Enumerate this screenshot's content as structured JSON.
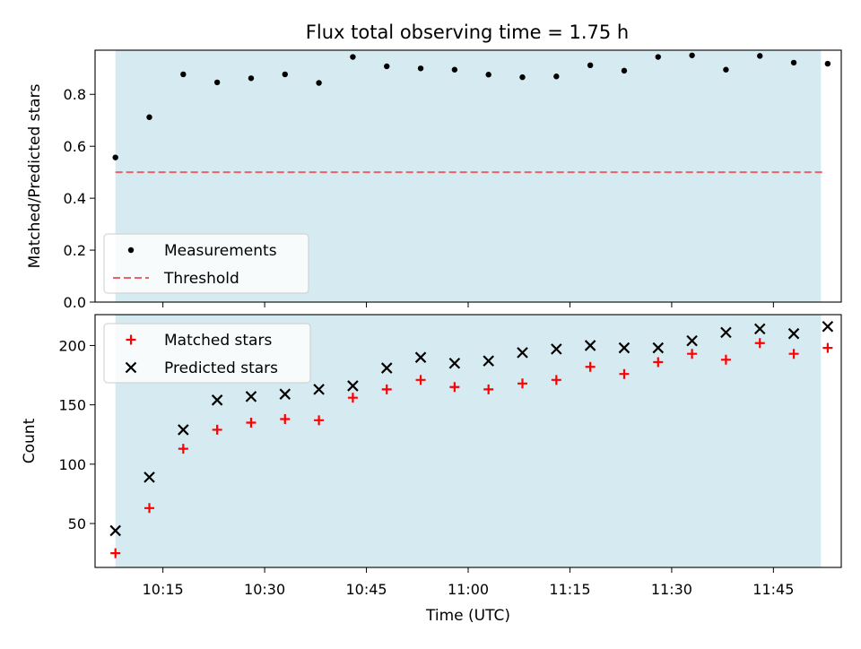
{
  "figure": {
    "title": "Flux total observing time = 1.75 h"
  },
  "chart_data": [
    {
      "type": "scatter",
      "panel": "top",
      "title": "Flux total observing time = 1.75 h",
      "xlabel": "",
      "ylabel": "Matched/Predicted stars",
      "xlim": [
        "10:05",
        "11:55"
      ],
      "ylim": [
        0,
        0.97
      ],
      "yticks": [
        0.0,
        0.2,
        0.4,
        0.6,
        0.8
      ],
      "ytick_labels": [
        "0.0",
        "0.2",
        "0.4",
        "0.6",
        "0.8"
      ],
      "grid": false,
      "shaded_span": {
        "from": "10:08",
        "to": "11:52",
        "color": "#d5ebf1"
      },
      "legend": {
        "placement": "lower-left"
      },
      "x": [
        "10:08",
        "10:13",
        "10:18",
        "10:23",
        "10:28",
        "10:33",
        "10:38",
        "10:43",
        "10:48",
        "10:53",
        "10:58",
        "11:03",
        "11:08",
        "11:13",
        "11:18",
        "11:23",
        "11:28",
        "11:33",
        "11:38",
        "11:43",
        "11:48",
        "11:53"
      ],
      "series": [
        {
          "name": "Measurements",
          "marker": "dot",
          "color": "#000000",
          "values": [
            0.557,
            0.712,
            0.877,
            0.846,
            0.862,
            0.877,
            0.844,
            0.944,
            0.908,
            0.9,
            0.895,
            0.876,
            0.866,
            0.869,
            0.912,
            0.891,
            0.944,
            0.95,
            0.895,
            0.948,
            0.922,
            0.918
          ]
        },
        {
          "name": "Threshold",
          "style": "dashed-line",
          "color": "#ef5f67",
          "values": [
            0.5
          ]
        }
      ]
    },
    {
      "type": "scatter",
      "panel": "bottom",
      "xlabel": "Time (UTC)",
      "ylabel": "Count",
      "xlim": [
        "10:05",
        "11:55"
      ],
      "ylim": [
        13,
        226
      ],
      "xticks": [
        "10:15",
        "10:30",
        "10:45",
        "11:00",
        "11:15",
        "11:30",
        "11:45"
      ],
      "yticks": [
        50,
        100,
        150,
        200
      ],
      "ytick_labels": [
        "50",
        "100",
        "150",
        "200"
      ],
      "grid": false,
      "shaded_span": {
        "from": "10:08",
        "to": "11:52",
        "color": "#d5ebf1"
      },
      "legend": {
        "placement": "top-left"
      },
      "x": [
        "10:08",
        "10:13",
        "10:18",
        "10:23",
        "10:28",
        "10:33",
        "10:38",
        "10:43",
        "10:48",
        "10:53",
        "10:58",
        "11:03",
        "11:08",
        "11:13",
        "11:18",
        "11:23",
        "11:28",
        "11:33",
        "11:38",
        "11:43",
        "11:48",
        "11:53"
      ],
      "series": [
        {
          "name": "Matched stars",
          "marker": "plus",
          "color": "#ff0000",
          "values": [
            25,
            63,
            113,
            129,
            135,
            138,
            137,
            156,
            163,
            171,
            165,
            163,
            168,
            171,
            182,
            176,
            186,
            193,
            188,
            202,
            193,
            198
          ]
        },
        {
          "name": "Predicted stars",
          "marker": "x",
          "color": "#000000",
          "values": [
            44,
            89,
            129,
            154,
            157,
            159,
            163,
            166,
            181,
            190,
            185,
            187,
            194,
            197,
            200,
            198,
            198,
            204,
            211,
            214,
            210,
            216
          ]
        }
      ]
    }
  ]
}
